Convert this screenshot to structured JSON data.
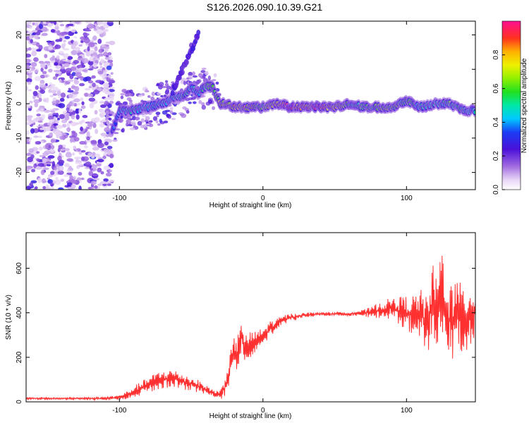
{
  "figure": {
    "title": "S126.2026.090.10.39.G21"
  },
  "colors": {
    "signal": "#ff3030",
    "axis": "#000000"
  },
  "chart_data": [
    {
      "type": "heatmap",
      "title": "",
      "xlabel": "Height of straight line (km)",
      "ylabel": "Frequency (Hz)",
      "xlim": [
        -165,
        148
      ],
      "ylim": [
        -25,
        24
      ],
      "xticks": [
        -100,
        0,
        100
      ],
      "yticks": [
        -20,
        -10,
        0,
        10,
        20
      ],
      "colorbar": {
        "label": "Normalized spectral amplitude",
        "range": [
          0,
          1
        ],
        "ticks": [
          "0.0",
          "0.2",
          "0.4",
          "0.6",
          "0.8"
        ],
        "tick_values": [
          0.0,
          0.2,
          0.4,
          0.6,
          0.8
        ]
      },
      "ridge": {
        "x": [
          -105,
          -100,
          -90,
          -80,
          -70,
          -60,
          -55,
          -50,
          -45,
          -40,
          -35,
          -30,
          -25,
          -20,
          -10,
          0,
          10,
          20,
          30,
          40,
          50,
          60,
          70,
          80,
          90,
          100,
          110,
          120,
          130,
          140,
          148
        ],
        "freq": [
          -8,
          -2,
          -2,
          -1,
          0,
          2,
          2,
          5,
          3,
          5,
          5,
          0,
          0,
          -1,
          -1,
          -1,
          0,
          -1,
          -1,
          -1,
          -1,
          0,
          -1,
          -1,
          -1,
          1,
          -1,
          0,
          0,
          -2,
          -2
        ],
        "amp": [
          0.3,
          0.45,
          0.5,
          0.45,
          0.45,
          0.5,
          0.5,
          0.45,
          0.45,
          0.55,
          0.6,
          0.7,
          0.75,
          0.8,
          0.75,
          0.6,
          0.8,
          0.95,
          0.8,
          0.95,
          0.75,
          0.55,
          0.55,
          0.6,
          0.65,
          0.55,
          0.5,
          0.5,
          0.55,
          0.5,
          0.45
        ]
      },
      "upper_branch": {
        "x": [
          -63,
          -58,
          -53,
          -50,
          -47,
          -45
        ],
        "freq": [
          4,
          8,
          13,
          16,
          18,
          21
        ],
        "amp": [
          0.3,
          0.35,
          0.35,
          0.35,
          0.3,
          0.3
        ]
      }
    },
    {
      "type": "line",
      "title": "",
      "xlabel": "Height of straight line (km)",
      "ylabel": "SNR (10 * v/v)",
      "xlim": [
        -165,
        148
      ],
      "ylim": [
        0,
        760
      ],
      "xticks": [
        -100,
        0,
        100
      ],
      "yticks": [
        0,
        200,
        400,
        600
      ],
      "series": [
        {
          "name": "SNR",
          "x": [
            -165,
            -140,
            -110,
            -100,
            -95,
            -90,
            -85,
            -80,
            -75,
            -70,
            -65,
            -60,
            -55,
            -50,
            -45,
            -40,
            -35,
            -30,
            -28,
            -25,
            -22,
            -20,
            -18,
            -16,
            -15,
            -12,
            -10,
            -8,
            -5,
            0,
            5,
            10,
            15,
            20,
            25,
            30,
            40,
            50,
            60,
            70,
            75,
            80,
            90,
            95,
            100,
            105,
            110,
            115,
            118,
            120,
            122,
            125,
            128,
            130,
            135,
            140,
            145,
            148
          ],
          "values": [
            15,
            15,
            15,
            20,
            30,
            45,
            60,
            75,
            90,
            100,
            105,
            100,
            90,
            80,
            70,
            55,
            40,
            30,
            45,
            100,
            170,
            220,
            220,
            240,
            300,
            230,
            250,
            260,
            270,
            290,
            330,
            350,
            370,
            380,
            385,
            390,
            395,
            395,
            395,
            400,
            400,
            410,
            420,
            410,
            400,
            390,
            400,
            330,
            460,
            380,
            420,
            500,
            390,
            360,
            380,
            370,
            390,
            400
          ],
          "noise": [
            3,
            3,
            5,
            8,
            12,
            18,
            22,
            25,
            28,
            30,
            30,
            28,
            25,
            22,
            20,
            15,
            12,
            15,
            30,
            40,
            50,
            50,
            60,
            60,
            55,
            50,
            45,
            40,
            35,
            30,
            25,
            18,
            15,
            12,
            10,
            8,
            6,
            6,
            6,
            10,
            18,
            25,
            35,
            45,
            55,
            65,
            75,
            95,
            120,
            140,
            150,
            150,
            140,
            130,
            120,
            110,
            100,
            100
          ]
        }
      ]
    }
  ]
}
